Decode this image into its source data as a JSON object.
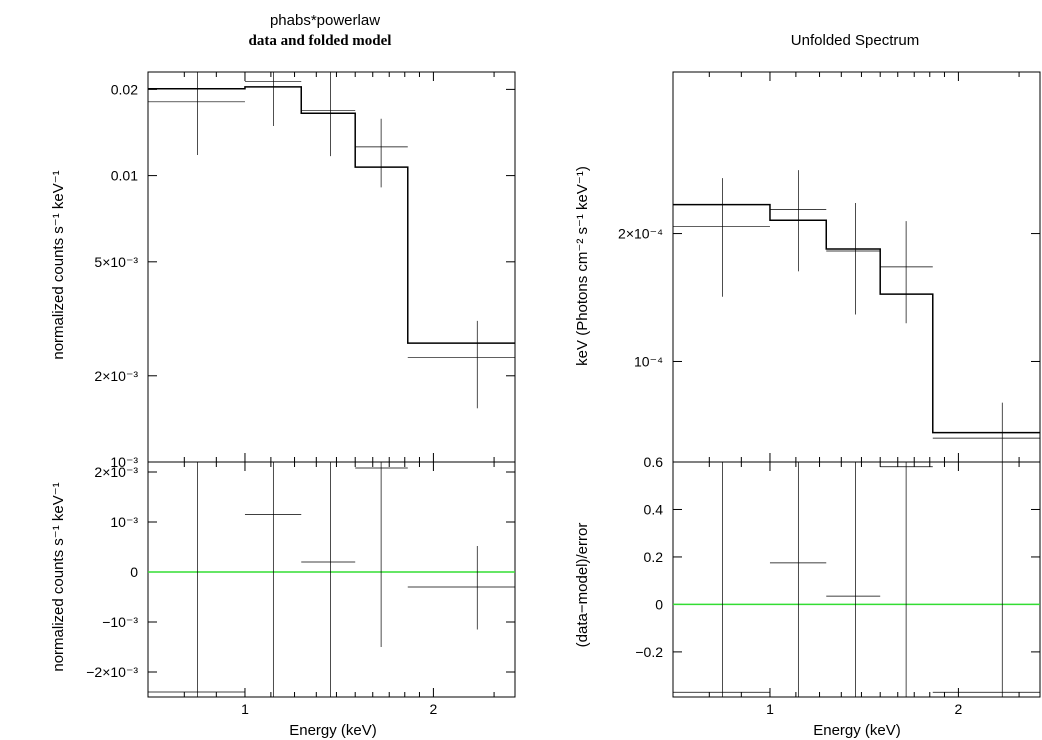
{
  "left_title": "phabs*powerlaw",
  "left_subtitle": "data and folded model",
  "right_title": "Unfolded Spectrum",
  "xlabel": "Energy (keV)",
  "left_top_ylabel": "normalized counts s⁻¹ keV⁻¹",
  "left_bottom_ylabel": "normalized counts s⁻¹ keV⁻¹",
  "right_top_ylabel": "keV (Photons cm⁻² s⁻¹ keV⁻¹)",
  "right_bottom_ylabel": "(data−model)/error",
  "colors": {
    "data": "#000000",
    "zero_line": "#33dd33"
  },
  "chart_data": [
    {
      "type": "scatter",
      "panel": "left-top",
      "xscale": "log",
      "yscale": "log",
      "xlim": [
        0.7,
        2.7
      ],
      "ylim": [
        0.001,
        0.023
      ],
      "xticks": [
        {
          "v": 1,
          "label": "1"
        },
        {
          "v": 2,
          "label": "2"
        }
      ],
      "yticks": [
        {
          "v": 0.001,
          "label": "10⁻³"
        },
        {
          "v": 0.002,
          "label": "2×10⁻³"
        },
        {
          "v": 0.005,
          "label": "5×10⁻³"
        },
        {
          "v": 0.01,
          "label": "0.01"
        },
        {
          "v": 0.02,
          "label": "0.02"
        }
      ],
      "data": [
        {
          "x": 0.84,
          "xlo": 0.7,
          "xhi": 1.0,
          "y": 0.0181,
          "ylo": 0.0118,
          "yhi": 0.0232
        },
        {
          "x": 1.11,
          "xlo": 1.0,
          "xhi": 1.23,
          "y": 0.0213,
          "ylo": 0.0149,
          "yhi": 0.0233
        },
        {
          "x": 1.37,
          "xlo": 1.23,
          "xhi": 1.5,
          "y": 0.0169,
          "ylo": 0.0117,
          "yhi": 0.023
        },
        {
          "x": 1.65,
          "xlo": 1.5,
          "xhi": 1.82,
          "y": 0.0126,
          "ylo": 0.0091,
          "yhi": 0.0158
        },
        {
          "x": 2.35,
          "xlo": 1.82,
          "xhi": 2.7,
          "y": 0.00232,
          "ylo": 0.00154,
          "yhi": 0.00311
        }
      ],
      "model": [
        {
          "xlo": 0.7,
          "xhi": 1.0,
          "y": 0.0201
        },
        {
          "xlo": 1.0,
          "xhi": 1.23,
          "y": 0.0204
        },
        {
          "xlo": 1.23,
          "xhi": 1.5,
          "y": 0.0165
        },
        {
          "xlo": 1.5,
          "xhi": 1.82,
          "y": 0.0107
        },
        {
          "xlo": 1.82,
          "xhi": 2.7,
          "y": 0.0026
        }
      ]
    },
    {
      "type": "scatter",
      "panel": "left-bottom",
      "xscale": "log",
      "yscale": "linear",
      "xlim": [
        0.7,
        2.7
      ],
      "ylim": [
        -0.0025,
        0.0022
      ],
      "xticks": [
        {
          "v": 1,
          "label": "1"
        },
        {
          "v": 2,
          "label": "2"
        }
      ],
      "yticks": [
        {
          "v": 0.002,
          "label": "2×10⁻³"
        },
        {
          "v": 0.001,
          "label": "10⁻³"
        },
        {
          "v": 0,
          "label": "0"
        },
        {
          "v": -0.001,
          "label": "−10⁻³"
        },
        {
          "v": -0.002,
          "label": "−2×10⁻³"
        }
      ],
      "zero_line": 0,
      "data": [
        {
          "x": 0.84,
          "xlo": 0.7,
          "xhi": 1.0,
          "y": -0.0024,
          "ylo": -0.0025,
          "yhi": 0.0022
        },
        {
          "x": 1.11,
          "xlo": 1.0,
          "xhi": 1.23,
          "y": 0.00115,
          "ylo": -0.0025,
          "yhi": 0.0022
        },
        {
          "x": 1.37,
          "xlo": 1.23,
          "xhi": 1.5,
          "y": 0.0002,
          "ylo": -0.0025,
          "yhi": 0.0022
        },
        {
          "x": 1.65,
          "xlo": 1.5,
          "xhi": 1.82,
          "y": 0.00208,
          "ylo": -0.0015,
          "yhi": 0.0022
        },
        {
          "x": 2.35,
          "xlo": 1.82,
          "xhi": 2.7,
          "y": -0.0003,
          "ylo": -0.00115,
          "yhi": 0.00052
        }
      ]
    },
    {
      "type": "scatter",
      "panel": "right-top",
      "xscale": "log",
      "yscale": "log",
      "xlim": [
        0.7,
        2.7
      ],
      "ylim": [
        5.8e-05,
        0.00048
      ],
      "xticks": [
        {
          "v": 1,
          "label": "1"
        },
        {
          "v": 2,
          "label": "2"
        }
      ],
      "yticks": [
        {
          "v": 0.0001,
          "label": "10⁻⁴"
        },
        {
          "v": 0.0002,
          "label": "2×10⁻⁴"
        }
      ],
      "data": [
        {
          "x": 0.84,
          "xlo": 0.7,
          "xhi": 1.0,
          "y": 0.000208,
          "ylo": 0.000142,
          "yhi": 0.00027
        },
        {
          "x": 1.11,
          "xlo": 1.0,
          "xhi": 1.23,
          "y": 0.000228,
          "ylo": 0.000163,
          "yhi": 0.000282
        },
        {
          "x": 1.37,
          "xlo": 1.23,
          "xhi": 1.5,
          "y": 0.000182,
          "ylo": 0.000129,
          "yhi": 0.000236
        },
        {
          "x": 1.65,
          "xlo": 1.5,
          "xhi": 1.82,
          "y": 0.000167,
          "ylo": 0.000123,
          "yhi": 0.000214
        },
        {
          "x": 2.35,
          "xlo": 1.82,
          "xhi": 2.7,
          "y": 6.6e-05,
          "ylo": 5.8e-05,
          "yhi": 8e-05
        }
      ],
      "model": [
        {
          "xlo": 0.7,
          "xhi": 1.0,
          "y": 0.000234
        },
        {
          "xlo": 1.0,
          "xhi": 1.23,
          "y": 0.000215
        },
        {
          "xlo": 1.23,
          "xhi": 1.5,
          "y": 0.000184
        },
        {
          "xlo": 1.5,
          "xhi": 1.82,
          "y": 0.000144
        },
        {
          "xlo": 1.82,
          "xhi": 2.7,
          "y": 6.8e-05
        }
      ]
    },
    {
      "type": "scatter",
      "panel": "right-bottom",
      "xscale": "log",
      "yscale": "linear",
      "xlim": [
        0.7,
        2.7
      ],
      "ylim": [
        -0.39,
        0.6
      ],
      "xticks": [
        {
          "v": 1,
          "label": "1"
        },
        {
          "v": 2,
          "label": "2"
        }
      ],
      "yticks": [
        {
          "v": 0.6,
          "label": "0.6"
        },
        {
          "v": 0.4,
          "label": "0.4"
        },
        {
          "v": 0.2,
          "label": "0.2"
        },
        {
          "v": 0,
          "label": "0"
        },
        {
          "v": -0.2,
          "label": "−0.2"
        }
      ],
      "zero_line": 0,
      "data": [
        {
          "x": 0.84,
          "xlo": 0.7,
          "xhi": 1.0,
          "y": -0.37,
          "ylo": -0.39,
          "yhi": 0.6
        },
        {
          "x": 1.11,
          "xlo": 1.0,
          "xhi": 1.23,
          "y": 0.175,
          "ylo": -0.39,
          "yhi": 0.6
        },
        {
          "x": 1.37,
          "xlo": 1.23,
          "xhi": 1.5,
          "y": 0.035,
          "ylo": -0.39,
          "yhi": 0.6
        },
        {
          "x": 1.65,
          "xlo": 1.5,
          "xhi": 1.82,
          "y": 0.58,
          "ylo": -0.39,
          "yhi": 0.6
        },
        {
          "x": 2.35,
          "xlo": 1.82,
          "xhi": 2.7,
          "y": -0.37,
          "ylo": -0.39,
          "yhi": 0.6
        }
      ]
    }
  ]
}
